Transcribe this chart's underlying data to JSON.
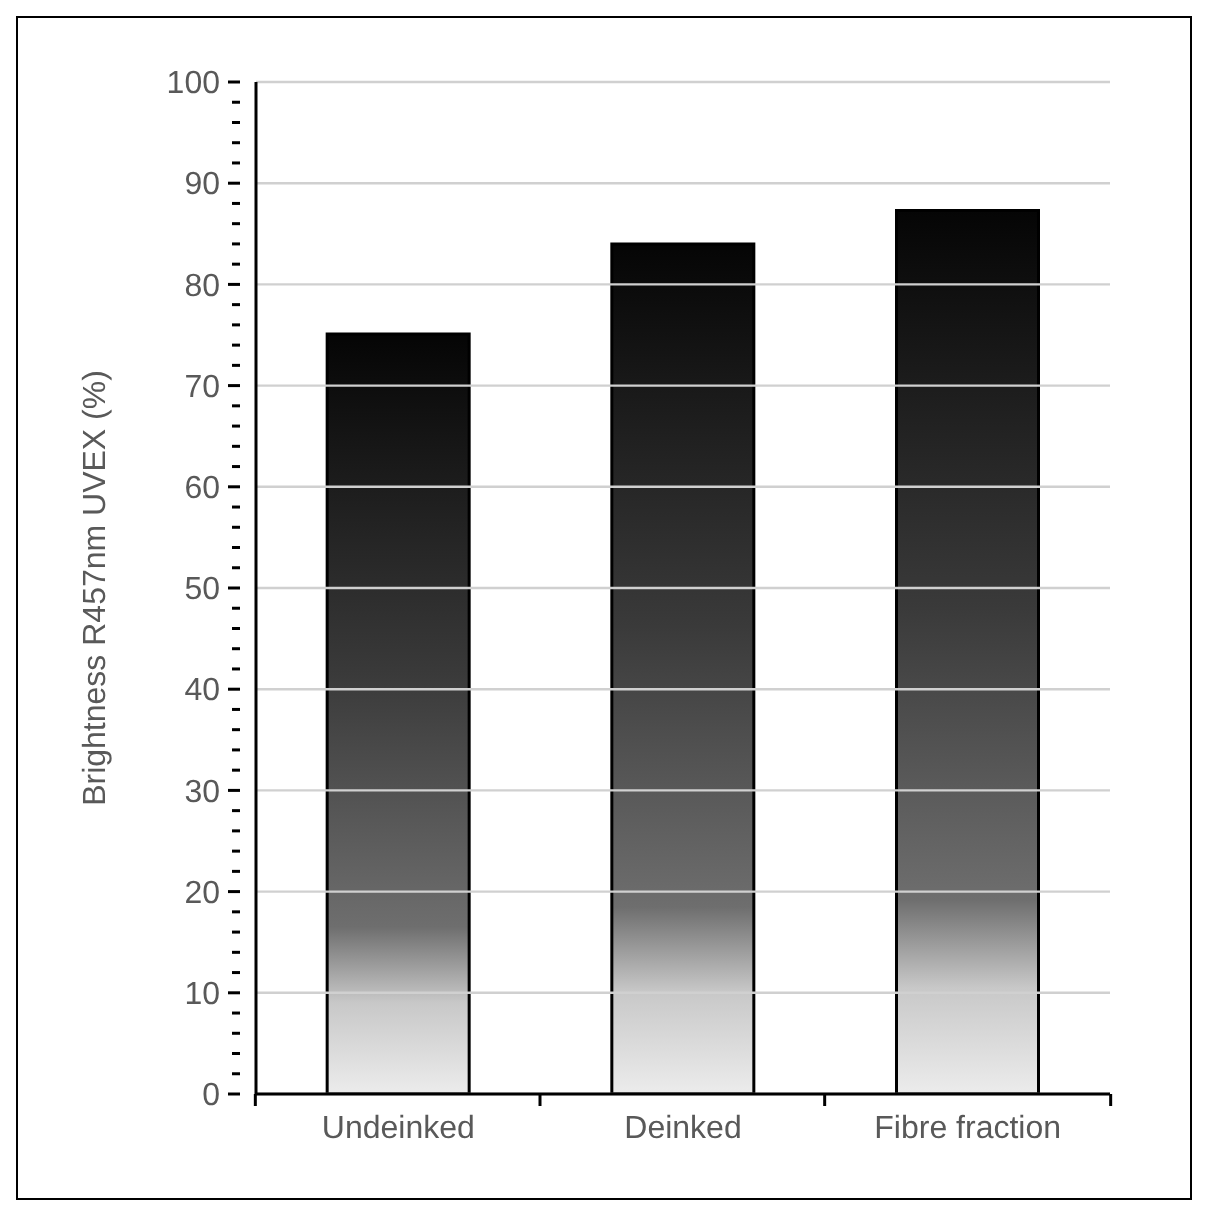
{
  "chart_data": {
    "type": "bar",
    "ylabel": "Brightness R457nm UVEX (%)",
    "categories": [
      "Undeinked",
      "Deinked",
      "Fibre fraction"
    ],
    "values": [
      75.1,
      84.0,
      87.3
    ],
    "color": "#050505",
    "ylim": [
      0,
      100
    ],
    "yticks": [
      0,
      {
        "value": 2,
        "label": null
      },
      {
        "value": 4,
        "label": null
      },
      {
        "value": 6,
        "label": null
      },
      {
        "value": 8,
        "label": null
      },
      10,
      {
        "value": 12,
        "label": null
      },
      {
        "value": 14,
        "label": null
      },
      {
        "value": 16,
        "label": null
      },
      {
        "value": 18,
        "label": null
      },
      20,
      {
        "value": 22,
        "label": null
      },
      {
        "value": 24,
        "label": null
      },
      {
        "value": 26,
        "label": null
      },
      {
        "value": 28,
        "label": null
      },
      30,
      {
        "value": 32,
        "label": null
      },
      {
        "value": 34,
        "label": null
      },
      {
        "value": 36,
        "label": null
      },
      {
        "value": 38,
        "label": null
      },
      40,
      {
        "value": 42,
        "label": null
      },
      {
        "value": 44,
        "label": null
      },
      {
        "value": 46,
        "label": null
      },
      {
        "value": 48,
        "label": null
      },
      50,
      {
        "value": 52,
        "label": null
      },
      {
        "value": 54,
        "label": null
      },
      {
        "value": 56,
        "label": null
      },
      {
        "value": 58,
        "label": null
      },
      60,
      {
        "value": 62,
        "label": null
      },
      {
        "value": 64,
        "label": null
      },
      {
        "value": 66,
        "label": null
      },
      {
        "value": 68,
        "label": null
      },
      70,
      {
        "value": 72,
        "label": null
      },
      {
        "value": 74,
        "label": null
      },
      {
        "value": 76,
        "label": null
      },
      {
        "value": 78,
        "label": null
      },
      80,
      {
        "value": 82,
        "label": null
      },
      {
        "value": 84,
        "label": null
      },
      {
        "value": 86,
        "label": null
      },
      {
        "value": 88,
        "label": null
      },
      90,
      {
        "value": 92,
        "label": null
      },
      {
        "value": 94,
        "label": null
      },
      {
        "value": 96,
        "label": null
      },
      {
        "value": 98,
        "label": null
      },
      100
    ],
    "grid": "y"
  }
}
